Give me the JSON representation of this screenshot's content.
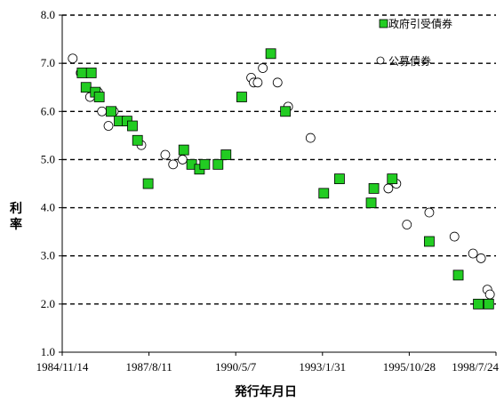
{
  "chart_data": {
    "type": "scatter",
    "xlabel": "発行年月日",
    "ylabel": "利率",
    "x_range": [
      "1984-11-14",
      "1998-07-24"
    ],
    "x_ticks": [
      {
        "date": "1984-11-14",
        "label": "1984/11/14"
      },
      {
        "date": "1987-08-11",
        "label": "1987/8/11"
      },
      {
        "date": "1990-05-07",
        "label": "1990/5/7"
      },
      {
        "date": "1993-01-31",
        "label": "1993/1/31"
      },
      {
        "date": "1995-10-28",
        "label": "1995/10/28"
      },
      {
        "date": "1998-07-24",
        "label": "1998/7/24"
      }
    ],
    "ylim": [
      1.0,
      8.0
    ],
    "y_ticks": [
      {
        "value": 1.0,
        "label": "1.0"
      },
      {
        "value": 2.0,
        "label": "2.0"
      },
      {
        "value": 3.0,
        "label": "3.0"
      },
      {
        "value": 4.0,
        "label": "4.0"
      },
      {
        "value": 5.0,
        "label": "5.0"
      },
      {
        "value": 6.0,
        "label": "6.0"
      },
      {
        "value": 7.0,
        "label": "7.0"
      },
      {
        "value": 8.0,
        "label": "8.0"
      }
    ],
    "grid": "horizontal-dashed",
    "legend_position": "top-right",
    "series": [
      {
        "name": "政府引受債券",
        "marker": "square",
        "color": "#22cc22",
        "points": [
          {
            "x": "1985-07-01",
            "y": 6.8
          },
          {
            "x": "1985-08-15",
            "y": 6.5
          },
          {
            "x": "1985-10-15",
            "y": 6.8
          },
          {
            "x": "1985-12-01",
            "y": 6.4
          },
          {
            "x": "1986-01-15",
            "y": 6.3
          },
          {
            "x": "1986-06-01",
            "y": 6.0
          },
          {
            "x": "1986-09-01",
            "y": 5.8
          },
          {
            "x": "1986-12-01",
            "y": 5.8
          },
          {
            "x": "1987-02-01",
            "y": 5.7
          },
          {
            "x": "1987-04-01",
            "y": 5.4
          },
          {
            "x": "1987-08-01",
            "y": 4.5
          },
          {
            "x": "1988-09-15",
            "y": 5.2
          },
          {
            "x": "1988-12-15",
            "y": 4.9
          },
          {
            "x": "1989-03-15",
            "y": 4.8
          },
          {
            "x": "1989-05-15",
            "y": 4.9
          },
          {
            "x": "1989-10-15",
            "y": 4.9
          },
          {
            "x": "1990-01-15",
            "y": 5.1
          },
          {
            "x": "1990-07-15",
            "y": 6.3
          },
          {
            "x": "1991-06-15",
            "y": 7.2
          },
          {
            "x": "1991-12-01",
            "y": 6.0
          },
          {
            "x": "1993-02-15",
            "y": 4.3
          },
          {
            "x": "1993-08-15",
            "y": 4.6
          },
          {
            "x": "1994-08-15",
            "y": 4.1
          },
          {
            "x": "1994-09-15",
            "y": 4.4
          },
          {
            "x": "1995-04-15",
            "y": 4.6
          },
          {
            "x": "1996-06-15",
            "y": 3.3
          },
          {
            "x": "1997-05-15",
            "y": 2.6
          },
          {
            "x": "1998-01-01",
            "y": 2.0
          },
          {
            "x": "1998-05-01",
            "y": 2.0
          }
        ]
      },
      {
        "name": "公募債券",
        "marker": "circle",
        "color": "#ffffff",
        "points": [
          {
            "x": "1985-03-15",
            "y": 7.1
          },
          {
            "x": "1985-06-15",
            "y": 6.8
          },
          {
            "x": "1985-10-01",
            "y": 6.3
          },
          {
            "x": "1986-01-01",
            "y": 6.4
          },
          {
            "x": "1986-02-15",
            "y": 6.0
          },
          {
            "x": "1986-05-01",
            "y": 5.7
          },
          {
            "x": "1986-07-01",
            "y": 6.0
          },
          {
            "x": "1986-11-01",
            "y": 5.8
          },
          {
            "x": "1987-05-15",
            "y": 5.3
          },
          {
            "x": "1988-02-15",
            "y": 5.1
          },
          {
            "x": "1988-05-15",
            "y": 4.9
          },
          {
            "x": "1988-09-01",
            "y": 5.0
          },
          {
            "x": "1990-11-01",
            "y": 6.7
          },
          {
            "x": "1990-12-01",
            "y": 6.6
          },
          {
            "x": "1991-01-15",
            "y": 6.6
          },
          {
            "x": "1991-03-15",
            "y": 6.9
          },
          {
            "x": "1991-09-01",
            "y": 6.6
          },
          {
            "x": "1992-01-01",
            "y": 6.1
          },
          {
            "x": "1992-09-15",
            "y": 5.45
          },
          {
            "x": "1995-03-01",
            "y": 4.4
          },
          {
            "x": "1995-06-01",
            "y": 4.5
          },
          {
            "x": "1995-10-01",
            "y": 3.65
          },
          {
            "x": "1996-06-15",
            "y": 3.9
          },
          {
            "x": "1997-04-01",
            "y": 3.4
          },
          {
            "x": "1997-11-01",
            "y": 3.05
          },
          {
            "x": "1998-02-01",
            "y": 2.95
          },
          {
            "x": "1998-04-15",
            "y": 2.3
          },
          {
            "x": "1998-05-15",
            "y": 2.2
          }
        ]
      }
    ]
  }
}
